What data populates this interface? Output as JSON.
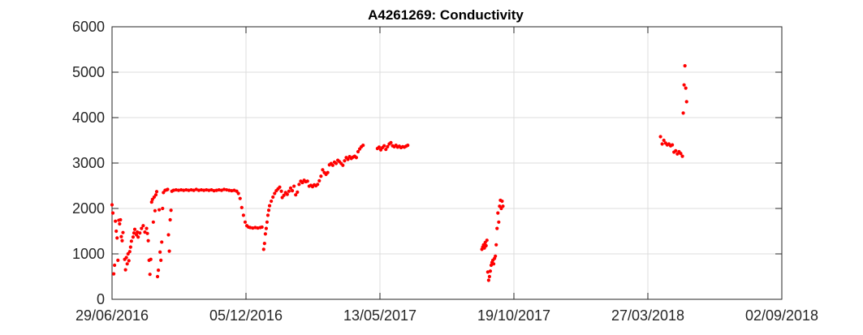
{
  "chart_data": {
    "type": "scatter",
    "title": "A4261269: Conductivity",
    "xlabel": "",
    "ylabel": "",
    "x_type": "date",
    "xlim": [
      "2016-06-29",
      "2018-09-02"
    ],
    "ylim": [
      0,
      6000
    ],
    "x_ticks": [
      "2016-06-29",
      "2016-12-05",
      "2017-05-13",
      "2017-10-19",
      "2018-03-27",
      "2018-09-02"
    ],
    "x_tick_labels": [
      "29/06/2016",
      "05/12/2016",
      "13/05/2017",
      "19/10/2017",
      "27/03/2018",
      "02/09/2018"
    ],
    "y_ticks": [
      0,
      1000,
      2000,
      3000,
      4000,
      5000,
      6000
    ],
    "y_tick_labels": [
      "0",
      "1000",
      "2000",
      "3000",
      "4000",
      "5000",
      "6000"
    ],
    "grid": true,
    "marker_color": "#ff0000",
    "series": [
      {
        "points": [
          [
            "2016-06-29",
            2080
          ],
          [
            "2016-06-30",
            1900
          ],
          [
            "2016-07-01",
            560
          ],
          [
            "2016-07-02",
            750
          ],
          [
            "2016-07-03",
            1720
          ],
          [
            "2016-07-04",
            1500
          ],
          [
            "2016-07-05",
            1350
          ],
          [
            "2016-07-06",
            860
          ],
          [
            "2016-07-07",
            1740
          ],
          [
            "2016-07-08",
            1660
          ],
          [
            "2016-07-09",
            1750
          ],
          [
            "2016-07-10",
            1380
          ],
          [
            "2016-07-11",
            1290
          ],
          [
            "2016-07-12",
            1470
          ],
          [
            "2016-07-14",
            880
          ],
          [
            "2016-07-15",
            650
          ],
          [
            "2016-07-16",
            920
          ],
          [
            "2016-07-17",
            780
          ],
          [
            "2016-07-18",
            1000
          ],
          [
            "2016-07-19",
            850
          ],
          [
            "2016-07-20",
            1050
          ],
          [
            "2016-07-21",
            1150
          ],
          [
            "2016-07-22",
            1280
          ],
          [
            "2016-07-24",
            1370
          ],
          [
            "2016-07-25",
            1460
          ],
          [
            "2016-07-26",
            1540
          ],
          [
            "2016-07-28",
            1420
          ],
          [
            "2016-07-29",
            1480
          ],
          [
            "2016-07-30",
            1370
          ],
          [
            "2016-08-01",
            1460
          ],
          [
            "2016-08-03",
            1560
          ],
          [
            "2016-08-05",
            1620
          ],
          [
            "2016-08-07",
            1480
          ],
          [
            "2016-08-09",
            1560
          ],
          [
            "2016-08-10",
            1450
          ],
          [
            "2016-08-11",
            1290
          ],
          [
            "2016-08-12",
            860
          ],
          [
            "2016-08-13",
            550
          ],
          [
            "2016-08-14",
            880
          ],
          [
            "2016-08-15",
            2140
          ],
          [
            "2016-08-16",
            2200
          ],
          [
            "2016-08-17",
            1700
          ],
          [
            "2016-08-18",
            2250
          ],
          [
            "2016-08-19",
            1950
          ],
          [
            "2016-08-20",
            2300
          ],
          [
            "2016-08-21",
            2370
          ],
          [
            "2016-08-22",
            500
          ],
          [
            "2016-08-23",
            640
          ],
          [
            "2016-08-24",
            1970
          ],
          [
            "2016-08-25",
            1040
          ],
          [
            "2016-08-26",
            860
          ],
          [
            "2016-08-27",
            1260
          ],
          [
            "2016-08-28",
            2000
          ],
          [
            "2016-08-29",
            2350
          ],
          [
            "2016-08-31",
            2400
          ],
          [
            "2016-09-02",
            2410
          ],
          [
            "2016-09-03",
            2420
          ],
          [
            "2016-09-04",
            1420
          ],
          [
            "2016-09-05",
            1060
          ],
          [
            "2016-09-06",
            1750
          ],
          [
            "2016-09-07",
            1960
          ],
          [
            "2016-09-08",
            2380
          ],
          [
            "2016-09-10",
            2400
          ],
          [
            "2016-09-13",
            2410
          ],
          [
            "2016-09-16",
            2400
          ],
          [
            "2016-09-19",
            2410
          ],
          [
            "2016-09-22",
            2400
          ],
          [
            "2016-09-25",
            2410
          ],
          [
            "2016-09-28",
            2400
          ],
          [
            "2016-10-01",
            2410
          ],
          [
            "2016-10-04",
            2400
          ],
          [
            "2016-10-07",
            2420
          ],
          [
            "2016-10-10",
            2400
          ],
          [
            "2016-10-13",
            2410
          ],
          [
            "2016-10-16",
            2400
          ],
          [
            "2016-10-19",
            2410
          ],
          [
            "2016-10-22",
            2400
          ],
          [
            "2016-10-25",
            2410
          ],
          [
            "2016-10-28",
            2390
          ],
          [
            "2016-10-31",
            2400
          ],
          [
            "2016-11-03",
            2410
          ],
          [
            "2016-11-06",
            2400
          ],
          [
            "2016-11-09",
            2420
          ],
          [
            "2016-11-12",
            2410
          ],
          [
            "2016-11-15",
            2400
          ],
          [
            "2016-11-18",
            2390
          ],
          [
            "2016-11-21",
            2400
          ],
          [
            "2016-11-24",
            2380
          ],
          [
            "2016-11-26",
            2330
          ],
          [
            "2016-11-28",
            2220
          ],
          [
            "2016-11-30",
            2020
          ],
          [
            "2016-12-02",
            1850
          ],
          [
            "2016-12-04",
            1700
          ],
          [
            "2016-12-06",
            1620
          ],
          [
            "2016-12-08",
            1590
          ],
          [
            "2016-12-10",
            1580
          ],
          [
            "2016-12-13",
            1570
          ],
          [
            "2016-12-16",
            1580
          ],
          [
            "2016-12-19",
            1570
          ],
          [
            "2016-12-22",
            1580
          ],
          [
            "2016-12-24",
            1590
          ],
          [
            "2016-12-26",
            1100
          ],
          [
            "2016-12-27",
            1230
          ],
          [
            "2016-12-28",
            1440
          ],
          [
            "2016-12-29",
            1560
          ],
          [
            "2016-12-30",
            1700
          ],
          [
            "2016-12-31",
            1850
          ],
          [
            "2017-01-01",
            1960
          ],
          [
            "2017-01-02",
            2060
          ],
          [
            "2017-01-04",
            2160
          ],
          [
            "2017-01-06",
            2250
          ],
          [
            "2017-01-08",
            2330
          ],
          [
            "2017-01-10",
            2390
          ],
          [
            "2017-01-12",
            2430
          ],
          [
            "2017-01-14",
            2470
          ],
          [
            "2017-01-16",
            2380
          ],
          [
            "2017-01-17",
            2240
          ],
          [
            "2017-01-19",
            2290
          ],
          [
            "2017-01-21",
            2350
          ],
          [
            "2017-01-23",
            2310
          ],
          [
            "2017-01-25",
            2380
          ],
          [
            "2017-01-27",
            2450
          ],
          [
            "2017-01-29",
            2390
          ],
          [
            "2017-01-31",
            2490
          ],
          [
            "2017-02-02",
            2300
          ],
          [
            "2017-02-04",
            2360
          ],
          [
            "2017-02-06",
            2530
          ],
          [
            "2017-02-08",
            2600
          ],
          [
            "2017-02-10",
            2570
          ],
          [
            "2017-02-12",
            2620
          ],
          [
            "2017-02-14",
            2590
          ],
          [
            "2017-02-16",
            2600
          ],
          [
            "2017-02-18",
            2490
          ],
          [
            "2017-02-20",
            2510
          ],
          [
            "2017-02-22",
            2480
          ],
          [
            "2017-02-24",
            2520
          ],
          [
            "2017-02-26",
            2500
          ],
          [
            "2017-02-28",
            2530
          ],
          [
            "2017-03-02",
            2610
          ],
          [
            "2017-03-04",
            2710
          ],
          [
            "2017-03-06",
            2850
          ],
          [
            "2017-03-08",
            2790
          ],
          [
            "2017-03-10",
            2750
          ],
          [
            "2017-03-12",
            2790
          ],
          [
            "2017-03-14",
            2960
          ],
          [
            "2017-03-16",
            2990
          ],
          [
            "2017-03-18",
            2950
          ],
          [
            "2017-03-20",
            3020
          ],
          [
            "2017-03-22",
            2990
          ],
          [
            "2017-03-24",
            3060
          ],
          [
            "2017-03-26",
            3030
          ],
          [
            "2017-03-28",
            2990
          ],
          [
            "2017-03-30",
            2950
          ],
          [
            "2017-04-01",
            3050
          ],
          [
            "2017-04-03",
            3120
          ],
          [
            "2017-04-05",
            3080
          ],
          [
            "2017-04-07",
            3140
          ],
          [
            "2017-04-09",
            3100
          ],
          [
            "2017-04-11",
            3130
          ],
          [
            "2017-04-13",
            3150
          ],
          [
            "2017-04-15",
            3120
          ],
          [
            "2017-04-17",
            3250
          ],
          [
            "2017-04-19",
            3310
          ],
          [
            "2017-04-21",
            3360
          ],
          [
            "2017-04-23",
            3390
          ],
          [
            "2017-05-10",
            3320
          ],
          [
            "2017-05-12",
            3350
          ],
          [
            "2017-05-14",
            3290
          ],
          [
            "2017-05-16",
            3340
          ],
          [
            "2017-05-18",
            3380
          ],
          [
            "2017-05-20",
            3300
          ],
          [
            "2017-05-22",
            3360
          ],
          [
            "2017-05-24",
            3420
          ],
          [
            "2017-05-26",
            3450
          ],
          [
            "2017-05-28",
            3380
          ],
          [
            "2017-05-30",
            3360
          ],
          [
            "2017-06-01",
            3390
          ],
          [
            "2017-06-03",
            3350
          ],
          [
            "2017-06-05",
            3370
          ],
          [
            "2017-06-07",
            3340
          ],
          [
            "2017-06-09",
            3360
          ],
          [
            "2017-06-11",
            3350
          ],
          [
            "2017-06-13",
            3370
          ],
          [
            "2017-06-15",
            3390
          ],
          [
            "2017-09-11",
            1100
          ],
          [
            "2017-09-12",
            1150
          ],
          [
            "2017-09-13",
            1200
          ],
          [
            "2017-09-14",
            1130
          ],
          [
            "2017-09-15",
            1250
          ],
          [
            "2017-09-16",
            1180
          ],
          [
            "2017-09-17",
            1300
          ],
          [
            "2017-09-18",
            600
          ],
          [
            "2017-09-19",
            420
          ],
          [
            "2017-09-20",
            500
          ],
          [
            "2017-09-21",
            620
          ],
          [
            "2017-09-22",
            750
          ],
          [
            "2017-09-23",
            810
          ],
          [
            "2017-09-24",
            860
          ],
          [
            "2017-09-25",
            780
          ],
          [
            "2017-09-26",
            900
          ],
          [
            "2017-09-27",
            950
          ],
          [
            "2017-09-28",
            1200
          ],
          [
            "2017-09-29",
            1560
          ],
          [
            "2017-09-30",
            1900
          ],
          [
            "2017-10-01",
            1700
          ],
          [
            "2017-10-02",
            2050
          ],
          [
            "2017-10-03",
            2180
          ],
          [
            "2017-10-04",
            2000
          ],
          [
            "2017-10-05",
            2160
          ],
          [
            "2017-10-06",
            2050
          ],
          [
            "2018-04-11",
            3580
          ],
          [
            "2018-04-13",
            3420
          ],
          [
            "2018-04-15",
            3500
          ],
          [
            "2018-04-17",
            3440
          ],
          [
            "2018-04-19",
            3400
          ],
          [
            "2018-04-21",
            3420
          ],
          [
            "2018-04-23",
            3380
          ],
          [
            "2018-04-25",
            3400
          ],
          [
            "2018-04-27",
            3240
          ],
          [
            "2018-04-29",
            3270
          ],
          [
            "2018-05-01",
            3200
          ],
          [
            "2018-05-03",
            3250
          ],
          [
            "2018-05-05",
            3210
          ],
          [
            "2018-05-07",
            3150
          ],
          [
            "2018-05-08",
            4100
          ],
          [
            "2018-05-09",
            4720
          ],
          [
            "2018-05-10",
            5140
          ],
          [
            "2018-05-11",
            4650
          ],
          [
            "2018-05-12",
            4350
          ]
        ]
      }
    ]
  }
}
